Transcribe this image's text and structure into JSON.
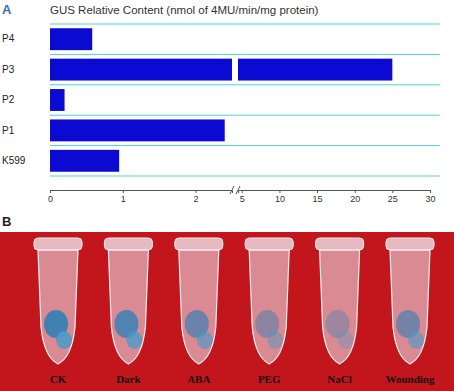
{
  "chart_data": {
    "type": "bar",
    "orientation": "horizontal",
    "panel_label": "A",
    "title": "GUS Relative Content (nmol of 4MU/min/mg protein)",
    "categories": [
      "P4",
      "P3",
      "P2",
      "P1",
      "K599"
    ],
    "values": [
      0.58,
      25,
      0.2,
      2.4,
      0.95
    ],
    "color": "#0a0ad2",
    "xlim": [
      0,
      30
    ],
    "xticks": [
      0,
      1,
      2,
      5,
      10,
      15,
      20,
      25,
      30
    ],
    "xbreak": [
      2.5,
      4.5
    ],
    "grid": true
  },
  "panel_b": {
    "label": "B",
    "tubes": [
      "CK",
      "Dark",
      "ABA",
      "PEG",
      "NaCl",
      "Wounding"
    ]
  }
}
